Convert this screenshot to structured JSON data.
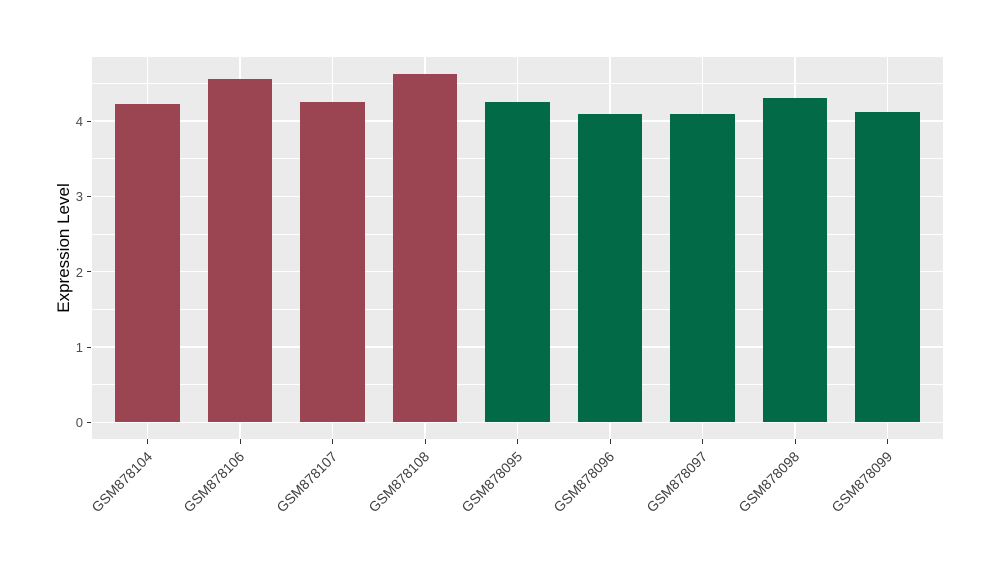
{
  "figure": {
    "background": "#FFFFFF"
  },
  "chart_data": {
    "type": "bar",
    "title": "",
    "xlabel": "",
    "ylabel": "Expression Level",
    "categories": [
      "GSM878104",
      "GSM878106",
      "GSM878107",
      "GSM878108",
      "GSM878095",
      "GSM878096",
      "GSM878097",
      "GSM878098",
      "GSM878099"
    ],
    "values": [
      4.22,
      4.56,
      4.25,
      4.63,
      4.25,
      4.09,
      4.1,
      4.31,
      4.12
    ],
    "bar_colors": [
      "#9A4551",
      "#9A4551",
      "#9A4551",
      "#9A4551",
      "#036A48",
      "#036A48",
      "#036A48",
      "#036A48",
      "#036A48"
    ],
    "ytick_labels": [
      "0",
      "1",
      "2",
      "3",
      "4"
    ],
    "yticks": [
      0,
      1,
      2,
      3,
      4
    ],
    "minor_ticks": [
      0.5,
      1.5,
      2.5,
      3.5,
      4.5
    ],
    "ylim": [
      -0.22,
      4.85
    ],
    "grid": "on",
    "legend": "none",
    "panel_bg": "#EBEBEB",
    "grid_color": "#FFFFFF",
    "axis_text_color": "#404040",
    "bar_width_fraction": 0.7,
    "category_edge_padding_units": 0.6
  }
}
